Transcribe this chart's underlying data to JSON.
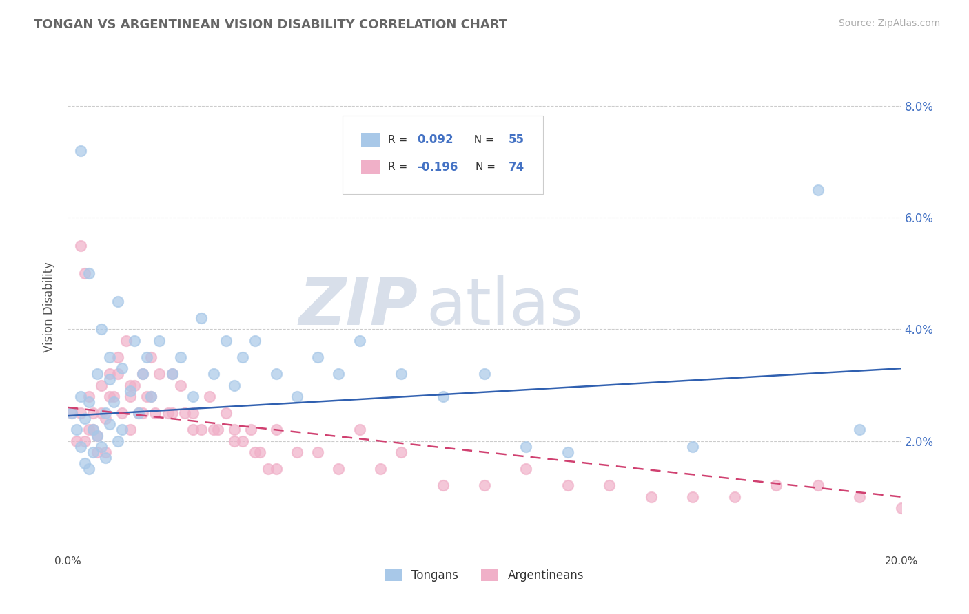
{
  "title": "TONGAN VS ARGENTINEAN VISION DISABILITY CORRELATION CHART",
  "source": "Source: ZipAtlas.com",
  "ylabel": "Vision Disability",
  "legend_label1": "Tongans",
  "legend_label2": "Argentineans",
  "r1": 0.092,
  "n1": 55,
  "r2": -0.196,
  "n2": 74,
  "xmin": 0.0,
  "xmax": 0.2,
  "ymin": 0.0,
  "ymax": 0.088,
  "yticks": [
    0.02,
    0.04,
    0.06,
    0.08
  ],
  "ytick_labels_right": [
    "2.0%",
    "4.0%",
    "6.0%",
    "8.0%"
  ],
  "xticks": [
    0.0,
    0.05,
    0.1,
    0.15,
    0.2
  ],
  "xtick_labels": [
    "0.0%",
    "",
    "",
    "",
    "20.0%"
  ],
  "color_tongan": "#a8c8e8",
  "color_argentinean": "#f0b0c8",
  "line_color_tongan": "#3060b0",
  "line_color_argentinean": "#d04070",
  "watermark_zip_color": "#d4dce8",
  "watermark_atlas_color": "#d4dce8",
  "background_color": "#ffffff",
  "tongan_x": [
    0.001,
    0.002,
    0.003,
    0.003,
    0.004,
    0.004,
    0.005,
    0.005,
    0.006,
    0.006,
    0.007,
    0.007,
    0.008,
    0.009,
    0.009,
    0.01,
    0.01,
    0.011,
    0.012,
    0.013,
    0.013,
    0.015,
    0.016,
    0.017,
    0.018,
    0.019,
    0.02,
    0.022,
    0.025,
    0.027,
    0.03,
    0.032,
    0.035,
    0.038,
    0.04,
    0.042,
    0.045,
    0.05,
    0.055,
    0.06,
    0.065,
    0.07,
    0.08,
    0.09,
    0.1,
    0.11,
    0.12,
    0.15,
    0.18,
    0.19,
    0.003,
    0.005,
    0.008,
    0.01,
    0.012
  ],
  "tongan_y": [
    0.025,
    0.022,
    0.019,
    0.028,
    0.016,
    0.024,
    0.027,
    0.015,
    0.022,
    0.018,
    0.032,
    0.021,
    0.019,
    0.025,
    0.017,
    0.023,
    0.031,
    0.027,
    0.02,
    0.033,
    0.022,
    0.029,
    0.038,
    0.025,
    0.032,
    0.035,
    0.028,
    0.038,
    0.032,
    0.035,
    0.028,
    0.042,
    0.032,
    0.038,
    0.03,
    0.035,
    0.038,
    0.032,
    0.028,
    0.035,
    0.032,
    0.038,
    0.032,
    0.028,
    0.032,
    0.019,
    0.018,
    0.019,
    0.065,
    0.022,
    0.072,
    0.05,
    0.04,
    0.035,
    0.045
  ],
  "argentinean_x": [
    0.001,
    0.002,
    0.003,
    0.004,
    0.005,
    0.005,
    0.006,
    0.007,
    0.008,
    0.009,
    0.009,
    0.01,
    0.011,
    0.012,
    0.013,
    0.014,
    0.015,
    0.015,
    0.016,
    0.017,
    0.018,
    0.019,
    0.02,
    0.021,
    0.022,
    0.024,
    0.025,
    0.027,
    0.028,
    0.03,
    0.032,
    0.034,
    0.036,
    0.038,
    0.04,
    0.042,
    0.044,
    0.046,
    0.048,
    0.05,
    0.055,
    0.06,
    0.065,
    0.07,
    0.075,
    0.08,
    0.09,
    0.1,
    0.11,
    0.12,
    0.13,
    0.14,
    0.15,
    0.16,
    0.17,
    0.18,
    0.19,
    0.2,
    0.003,
    0.004,
    0.006,
    0.007,
    0.008,
    0.01,
    0.012,
    0.015,
    0.018,
    0.02,
    0.025,
    0.03,
    0.035,
    0.04,
    0.045,
    0.05
  ],
  "argentinean_y": [
    0.025,
    0.02,
    0.055,
    0.05,
    0.028,
    0.022,
    0.025,
    0.021,
    0.03,
    0.024,
    0.018,
    0.032,
    0.028,
    0.035,
    0.025,
    0.038,
    0.028,
    0.022,
    0.03,
    0.025,
    0.032,
    0.028,
    0.035,
    0.025,
    0.032,
    0.025,
    0.032,
    0.03,
    0.025,
    0.022,
    0.022,
    0.028,
    0.022,
    0.025,
    0.022,
    0.02,
    0.022,
    0.018,
    0.015,
    0.022,
    0.018,
    0.018,
    0.015,
    0.022,
    0.015,
    0.018,
    0.012,
    0.012,
    0.015,
    0.012,
    0.012,
    0.01,
    0.01,
    0.01,
    0.012,
    0.012,
    0.01,
    0.008,
    0.025,
    0.02,
    0.022,
    0.018,
    0.025,
    0.028,
    0.032,
    0.03,
    0.025,
    0.028,
    0.025,
    0.025,
    0.022,
    0.02,
    0.018,
    0.015
  ]
}
